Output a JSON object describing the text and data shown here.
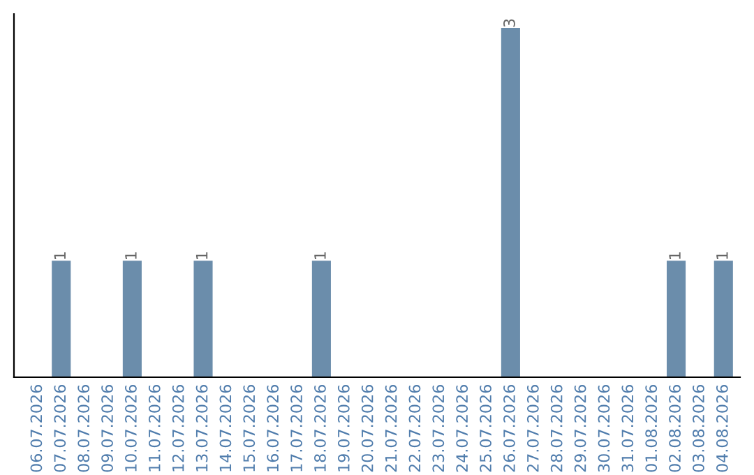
{
  "chart_data": {
    "type": "bar",
    "categories": [
      "06.07.2026",
      "07.07.2026",
      "08.07.2026",
      "09.07.2026",
      "10.07.2026",
      "11.07.2026",
      "12.07.2026",
      "13.07.2026",
      "14.07.2026",
      "15.07.2026",
      "16.07.2026",
      "17.07.2026",
      "18.07.2026",
      "19.07.2026",
      "20.07.2026",
      "21.07.2026",
      "22.07.2026",
      "23.07.2026",
      "24.07.2026",
      "25.07.2026",
      "26.07.2026",
      "27.07.2026",
      "28.07.2026",
      "29.07.2026",
      "30.07.2026",
      "31.07.2026",
      "01.08.2026",
      "02.08.2026",
      "03.08.2026",
      "04.08.2026"
    ],
    "values": [
      0,
      1,
      0,
      0,
      1,
      0,
      0,
      1,
      0,
      0,
      0,
      0,
      1,
      0,
      0,
      0,
      0,
      0,
      0,
      0,
      3,
      0,
      0,
      0,
      0,
      0,
      0,
      1,
      0,
      1
    ],
    "value_labels": [
      null,
      "1",
      null,
      null,
      "1",
      null,
      null,
      "1",
      null,
      null,
      null,
      null,
      "1",
      null,
      null,
      null,
      null,
      null,
      null,
      null,
      "3",
      null,
      null,
      null,
      null,
      null,
      null,
      "1",
      null,
      "1"
    ],
    "color": "#6b8dab",
    "tick_labels": "x",
    "grid": false,
    "legend": false
  }
}
